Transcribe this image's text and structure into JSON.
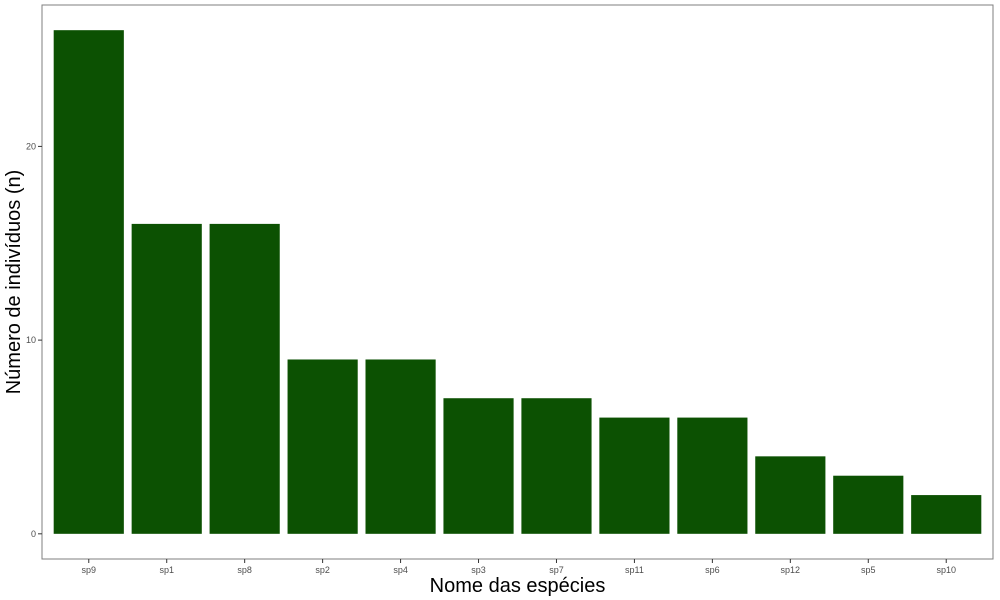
{
  "chart_data": {
    "type": "bar",
    "title": "",
    "xlabel": "Nome das espécies",
    "ylabel": "Número de indivíduos (n)",
    "categories": [
      "sp9",
      "sp1",
      "sp8",
      "sp2",
      "sp4",
      "sp3",
      "sp7",
      "sp11",
      "sp6",
      "sp12",
      "sp5",
      "sp10"
    ],
    "values": [
      26,
      16,
      16,
      9,
      9,
      7,
      7,
      6,
      6,
      4,
      3,
      2
    ],
    "ylim": [
      -1.3,
      27.3
    ],
    "yticks": [
      0,
      10,
      20
    ],
    "grid": false,
    "legend": "none",
    "colors": {
      "bar": "#0c5102",
      "panel_border": "#7f7f7f",
      "tick": "#333333"
    }
  }
}
